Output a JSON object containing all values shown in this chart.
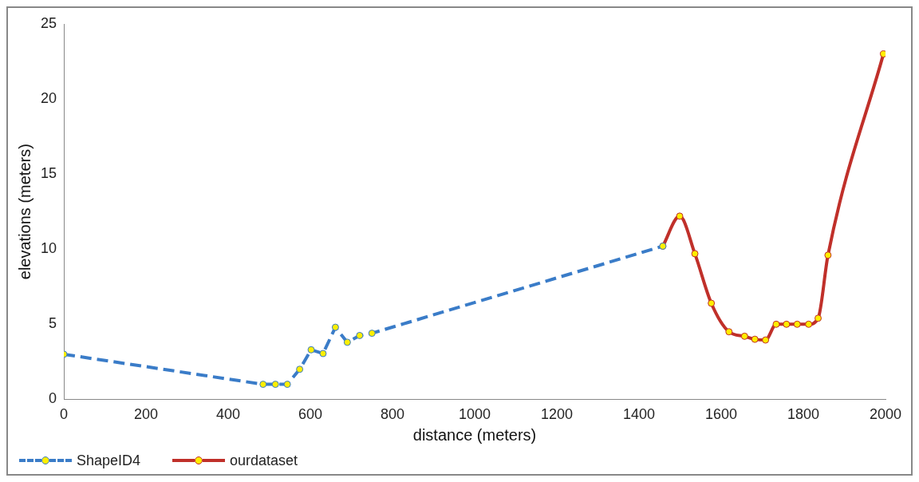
{
  "chart_data": {
    "type": "line",
    "xlabel": "distance (meters)",
    "ylabel": "elevations (meters)",
    "xlim": [
      0,
      2000
    ],
    "xticks": [
      0,
      200,
      400,
      600,
      800,
      1000,
      1200,
      1400,
      1600,
      1800,
      2000
    ],
    "ylim": [
      0,
      25
    ],
    "yticks": [
      0,
      5,
      10,
      15,
      20,
      25
    ],
    "grid": false,
    "legend": "bottom left",
    "marker": "circle",
    "series": [
      {
        "name": "ShapeID4",
        "color": "#3a7cc8",
        "line_style": "dashed",
        "x": [
          0,
          485,
          515,
          544,
          574,
          602,
          631,
          661,
          690,
          720,
          750,
          1458
        ],
        "values": [
          3.0,
          1.0,
          1.0,
          1.0,
          2.0,
          3.3,
          3.05,
          4.8,
          3.8,
          4.25,
          4.4,
          10.2
        ]
      },
      {
        "name": "ourdataset",
        "color": "#c0302a",
        "line_style": "solid",
        "x": [
          1458,
          1499,
          1536,
          1576,
          1619,
          1657,
          1682,
          1708,
          1734,
          1759,
          1785,
          1813,
          1836,
          1860,
          1995
        ],
        "values": [
          10.2,
          12.2,
          9.7,
          6.4,
          4.5,
          4.2,
          4.0,
          3.95,
          5.0,
          5.0,
          5.0,
          5.0,
          5.4,
          9.6,
          23.0
        ]
      }
    ]
  }
}
